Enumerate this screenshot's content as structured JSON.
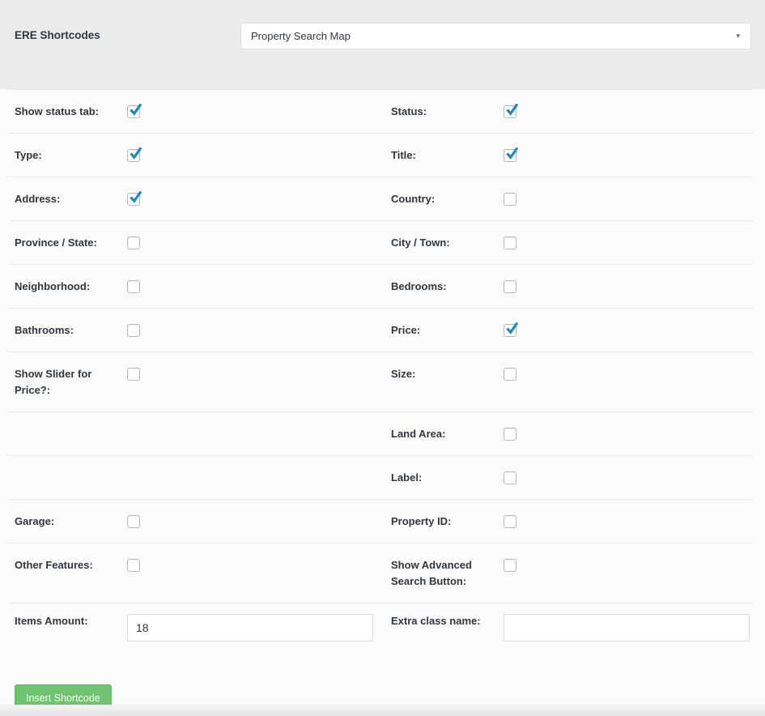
{
  "header": {
    "title": "ERE Shortcodes",
    "shortcode_select": {
      "value": "Property Search Map",
      "arrow_icon": "▾"
    }
  },
  "rows": [
    {
      "left": {
        "label": "Show status tab:",
        "control": "checkbox",
        "checked": true
      },
      "right": {
        "label": "Status:",
        "control": "checkbox",
        "checked": true
      }
    },
    {
      "left": {
        "label": "Type:",
        "control": "checkbox",
        "checked": true
      },
      "right": {
        "label": "Title:",
        "control": "checkbox",
        "checked": true
      }
    },
    {
      "left": {
        "label": "Address:",
        "control": "checkbox",
        "checked": true
      },
      "right": {
        "label": "Country:",
        "control": "checkbox",
        "checked": false
      }
    },
    {
      "left": {
        "label": "Province / State:",
        "control": "checkbox",
        "checked": false
      },
      "right": {
        "label": "City / Town:",
        "control": "checkbox",
        "checked": false
      }
    },
    {
      "left": {
        "label": "Neighborhood:",
        "control": "checkbox",
        "checked": false
      },
      "right": {
        "label": "Bedrooms:",
        "control": "checkbox",
        "checked": false
      }
    },
    {
      "left": {
        "label": "Bathrooms:",
        "control": "checkbox",
        "checked": false
      },
      "right": {
        "label": "Price:",
        "control": "checkbox",
        "checked": true
      }
    },
    {
      "left": {
        "label": "Show Slider for Price?:",
        "control": "checkbox",
        "checked": false
      },
      "right": {
        "label": "Size:",
        "control": "checkbox",
        "checked": false
      }
    },
    {
      "left": null,
      "right": {
        "label": "Land Area:",
        "control": "checkbox",
        "checked": false
      }
    },
    {
      "left": null,
      "right": {
        "label": "Label:",
        "control": "checkbox",
        "checked": false
      }
    },
    {
      "left": {
        "label": "Garage:",
        "control": "checkbox",
        "checked": false
      },
      "right": {
        "label": "Property ID:",
        "control": "checkbox",
        "checked": false
      }
    },
    {
      "left": {
        "label": "Other Features:",
        "control": "checkbox",
        "checked": false
      },
      "right": {
        "label": "Show Advanced Search Button:",
        "control": "checkbox",
        "checked": false
      }
    },
    {
      "left": {
        "label": "Items Amount:",
        "control": "text",
        "value": "18"
      },
      "right": {
        "label": "Extra class name:",
        "control": "text",
        "value": ""
      }
    }
  ],
  "footer": {
    "insert_button_label": "Insert Shortcode"
  },
  "colors": {
    "header_bg": "#ebebeb",
    "check_blue": "#1e8cbe",
    "button_green": "#6fc36f",
    "row_separator": "#e8e8e8"
  }
}
